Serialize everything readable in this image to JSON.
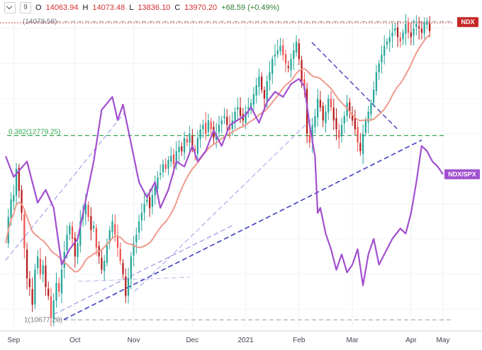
{
  "ohlc": {
    "open_label": "O",
    "open": "14063.94",
    "high_label": "H",
    "high": "14073.48",
    "low_label": "L",
    "low": "13836.10",
    "close_label": "C",
    "close": "13970.20",
    "change": "+68.59 (+0.49%)",
    "collapse_icon": "chevron-down-icon",
    "code_icon": "code-icon"
  },
  "colors": {
    "up": "#26a69a",
    "down": "#ef5350",
    "down_dark": "#b71c1c",
    "ratio": "#a24fcf",
    "sma": "#ef9a8c",
    "trend": "#3f3fbf",
    "fib": "#34a853",
    "ndx_tag": "#c62828",
    "ratio_tag": "#a24fcf"
  },
  "chart_data": {
    "type": "line",
    "symbol_tag": "NDX",
    "ratio_tag": "NDX/SPX",
    "x_ticks": [
      "Sep",
      "Oct",
      "Nov",
      "Dec",
      "2021",
      "Feb",
      "Mar",
      "Apr",
      "May"
    ],
    "levels": [
      {
        "label": "(14078.58)",
        "value": 14078.58
      },
      {
        "label": "0.382(12779.25)",
        "value": 12779.25
      },
      {
        "label": "1(10677.20)",
        "value": 10677.2
      }
    ],
    "ylim": [
      10600,
      14130
    ],
    "x_range": [
      0,
      164
    ],
    "month_index": [
      3,
      26,
      48,
      70,
      90,
      110,
      130,
      152,
      164
    ],
    "closes": [
      11550,
      11850,
      12050,
      12100,
      12400,
      12150,
      11900,
      11500,
      11150,
      11050,
      10850,
      11250,
      11400,
      11200,
      11300,
      11050,
      10950,
      10700,
      10900,
      11100,
      11000,
      11250,
      11450,
      11650,
      11750,
      11600,
      11400,
      11550,
      11800,
      11900,
      12000,
      11850,
      11700,
      11750,
      11500,
      11400,
      11250,
      11350,
      11550,
      11700,
      11800,
      11650,
      11500,
      11350,
      11200,
      10950,
      11150,
      11400,
      11550,
      11650,
      11800,
      11900,
      12000,
      12050,
      11950,
      12100,
      12200,
      12300,
      12350,
      12450,
      12400,
      12500,
      12550,
      12450,
      12600,
      12650,
      12600,
      12750,
      12700,
      12800,
      12650,
      12600,
      12750,
      12850,
      12900,
      12800,
      12950,
      12850,
      12750,
      12800,
      12900,
      12950,
      13000,
      12900,
      12850,
      12950,
      13050,
      13100,
      13000,
      12950,
      13050,
      13100,
      13150,
      13250,
      13350,
      13450,
      13300,
      13200,
      13400,
      13500,
      13650,
      13700,
      13750,
      13800,
      13700,
      13600,
      13550,
      13650,
      13750,
      13850,
      13650,
      13400,
      13300,
      12800,
      12700,
      12900,
      13000,
      13200,
      13100,
      12950,
      13050,
      13200,
      13100,
      12950,
      12850,
      12750,
      12900,
      13000,
      13150,
      13050,
      12950,
      12850,
      12700,
      12600,
      12800,
      12950,
      13050,
      13150,
      13300,
      13500,
      13600,
      13700,
      13800,
      13850,
      13900,
      13950,
      14000,
      13900,
      13850,
      13950,
      14050,
      13950,
      13900,
      14000,
      14050,
      14000,
      13950,
      14063,
      14070,
      13970
    ],
    "ratio_path": [
      [
        0,
        0.6
      ],
      [
        3,
        0.52
      ],
      [
        8,
        0.58
      ],
      [
        12,
        0.42
      ],
      [
        15,
        0.47
      ],
      [
        18,
        0.4
      ],
      [
        21,
        0.18
      ],
      [
        24,
        0.24
      ],
      [
        27,
        0.28
      ],
      [
        30,
        0.43
      ],
      [
        33,
        0.58
      ],
      [
        36,
        0.78
      ],
      [
        40,
        0.83
      ],
      [
        42,
        0.74
      ],
      [
        44,
        0.8
      ],
      [
        46,
        0.7
      ],
      [
        50,
        0.5
      ],
      [
        53,
        0.44
      ],
      [
        56,
        0.5
      ],
      [
        58,
        0.4
      ],
      [
        61,
        0.47
      ],
      [
        64,
        0.58
      ],
      [
        67,
        0.56
      ],
      [
        70,
        0.64
      ],
      [
        72,
        0.58
      ],
      [
        75,
        0.62
      ],
      [
        78,
        0.7
      ],
      [
        81,
        0.64
      ],
      [
        84,
        0.72
      ],
      [
        87,
        0.74
      ],
      [
        90,
        0.76
      ],
      [
        92,
        0.79
      ],
      [
        95,
        0.73
      ],
      [
        98,
        0.81
      ],
      [
        101,
        0.85
      ],
      [
        104,
        0.83
      ],
      [
        107,
        0.88
      ],
      [
        110,
        0.9
      ],
      [
        112,
        0.87
      ],
      [
        114,
        0.72
      ],
      [
        116,
        0.6
      ],
      [
        117,
        0.38
      ],
      [
        118,
        0.4
      ],
      [
        120,
        0.3
      ],
      [
        122,
        0.24
      ],
      [
        124,
        0.16
      ],
      [
        126,
        0.22
      ],
      [
        128,
        0.15
      ],
      [
        130,
        0.18
      ],
      [
        132,
        0.24
      ],
      [
        134,
        0.1
      ],
      [
        136,
        0.22
      ],
      [
        138,
        0.28
      ],
      [
        140,
        0.18
      ],
      [
        142,
        0.22
      ],
      [
        145,
        0.28
      ],
      [
        148,
        0.32
      ],
      [
        150,
        0.3
      ],
      [
        152,
        0.38
      ],
      [
        154,
        0.5
      ],
      [
        156,
        0.64
      ],
      [
        158,
        0.62
      ],
      [
        160,
        0.58
      ],
      [
        162,
        0.56
      ],
      [
        164,
        0.53
      ]
    ],
    "ratio_range": [
      0,
      1
    ]
  }
}
